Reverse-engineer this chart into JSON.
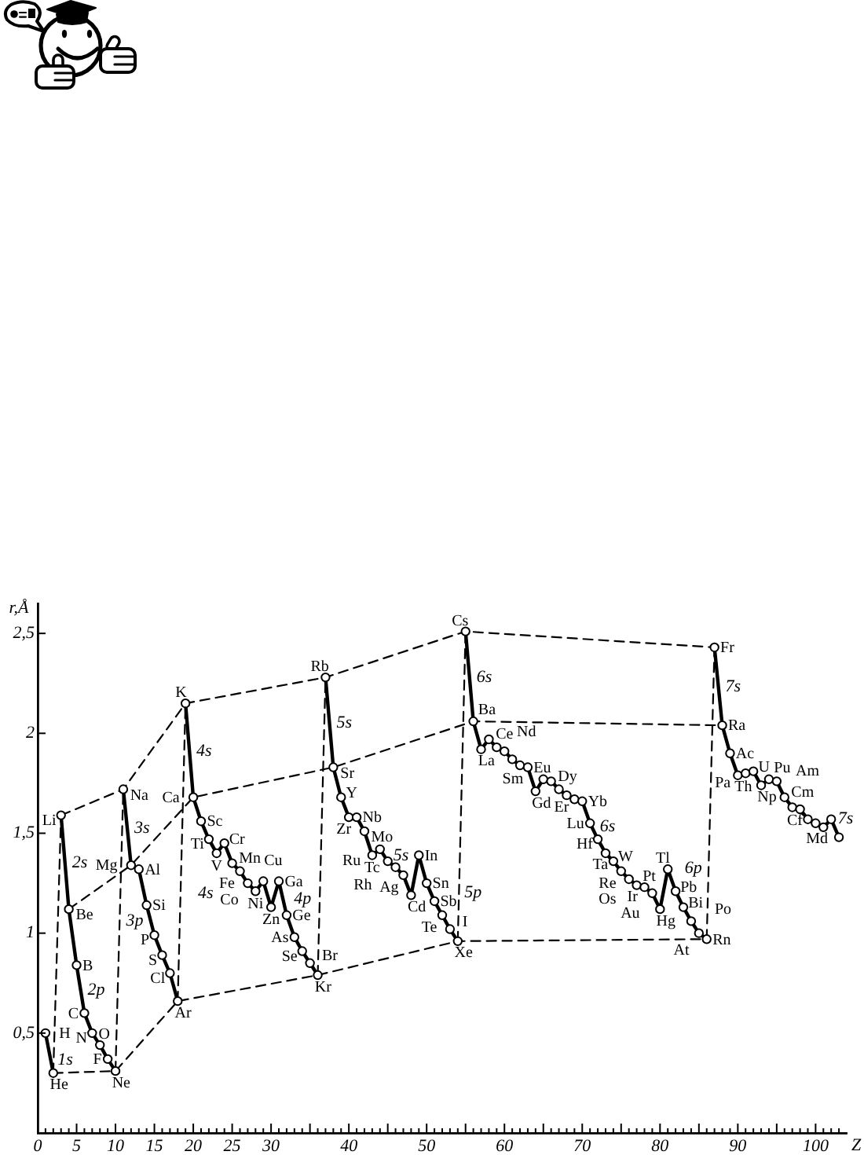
{
  "chart_data": {
    "type": "line",
    "xlabel": "Z",
    "ylabel": "r,Å",
    "marker": "circle",
    "line_style": "solid",
    "xlim": [
      0,
      104
    ],
    "ylim": [
      0,
      2.65
    ],
    "xticks": [
      0,
      {
        "value": 1,
        "label": null
      },
      {
        "value": 2,
        "label": null
      },
      {
        "value": 3,
        "label": null
      },
      {
        "value": 4,
        "label": null
      },
      5,
      {
        "value": 6,
        "label": null
      },
      {
        "value": 7,
        "label": null
      },
      {
        "value": 8,
        "label": null
      },
      {
        "value": 9,
        "label": null
      },
      10,
      {
        "value": 11,
        "label": null
      },
      {
        "value": 12,
        "label": null
      },
      {
        "value": 13,
        "label": null
      },
      {
        "value": 14,
        "label": null
      },
      15,
      {
        "value": 16,
        "label": null
      },
      {
        "value": 17,
        "label": null
      },
      {
        "value": 18,
        "label": null
      },
      {
        "value": 19,
        "label": null
      },
      20,
      {
        "value": 21,
        "label": null
      },
      {
        "value": 22,
        "label": null
      },
      {
        "value": 23,
        "label": null
      },
      {
        "value": 24,
        "label": null
      },
      25,
      {
        "value": 26,
        "label": null
      },
      {
        "value": 27,
        "label": null
      },
      {
        "value": 28,
        "label": null
      },
      {
        "value": 29,
        "label": null
      },
      30,
      {
        "value": 31,
        "label": null
      },
      {
        "value": 32,
        "label": null
      },
      {
        "value": 33,
        "label": null
      },
      {
        "value": 34,
        "label": null
      },
      {
        "value": 35,
        "label": null
      },
      {
        "value": 36,
        "label": null
      },
      {
        "value": 37,
        "label": null
      },
      {
        "value": 38,
        "label": null
      },
      {
        "value": 39,
        "label": null
      },
      40,
      {
        "value": 41,
        "label": null
      },
      {
        "value": 42,
        "label": null
      },
      {
        "value": 43,
        "label": null
      },
      {
        "value": 44,
        "label": null
      },
      {
        "value": 45,
        "label": null
      },
      {
        "value": 46,
        "label": null
      },
      {
        "value": 47,
        "label": null
      },
      {
        "value": 48,
        "label": null
      },
      {
        "value": 49,
        "label": null
      },
      50,
      {
        "value": 51,
        "label": null
      },
      {
        "value": 52,
        "label": null
      },
      {
        "value": 53,
        "label": null
      },
      {
        "value": 54,
        "label": null
      },
      {
        "value": 55,
        "label": null
      },
      {
        "value": 56,
        "label": null
      },
      {
        "value": 57,
        "label": null
      },
      {
        "value": 58,
        "label": null
      },
      {
        "value": 59,
        "label": null
      },
      60,
      {
        "value": 61,
        "label": null
      },
      {
        "value": 62,
        "label": null
      },
      {
        "value": 63,
        "label": null
      },
      {
        "value": 64,
        "label": null
      },
      {
        "value": 65,
        "label": null
      },
      {
        "value": 66,
        "label": null
      },
      {
        "value": 67,
        "label": null
      },
      {
        "value": 68,
        "label": null
      },
      {
        "value": 69,
        "label": null
      },
      70,
      {
        "value": 71,
        "label": null
      },
      {
        "value": 72,
        "label": null
      },
      {
        "value": 73,
        "label": null
      },
      {
        "value": 74,
        "label": null
      },
      {
        "value": 75,
        "label": null
      },
      {
        "value": 76,
        "label": null
      },
      {
        "value": 77,
        "label": null
      },
      {
        "value": 78,
        "label": null
      },
      {
        "value": 79,
        "label": null
      },
      80,
      {
        "value": 81,
        "label": null
      },
      {
        "value": 82,
        "label": null
      },
      {
        "value": 83,
        "label": null
      },
      {
        "value": 84,
        "label": null
      },
      {
        "value": 85,
        "label": null
      },
      {
        "value": 86,
        "label": null
      },
      {
        "value": 87,
        "label": null
      },
      {
        "value": 88,
        "label": null
      },
      {
        "value": 89,
        "label": null
      },
      90,
      {
        "value": 91,
        "label": null
      },
      {
        "value": 92,
        "label": null
      },
      {
        "value": 93,
        "label": null
      },
      {
        "value": 94,
        "label": null
      },
      {
        "value": 95,
        "label": null
      },
      {
        "value": 96,
        "label": null
      },
      {
        "value": 97,
        "label": null
      },
      {
        "value": 98,
        "label": null
      },
      {
        "value": 99,
        "label": null
      },
      100,
      {
        "value": 101,
        "label": null
      },
      {
        "value": 102,
        "label": null
      },
      {
        "value": 103,
        "label": null
      }
    ],
    "yticks": [
      {
        "value": 0.5,
        "label": "0,5"
      },
      1,
      {
        "value": 1.5,
        "label": "1,5"
      },
      2,
      {
        "value": 2.5,
        "label": "2,5"
      }
    ],
    "series": [
      {
        "color": "#000000",
        "x": [
          1,
          2
        ],
        "values": [
          0.5,
          0.3
        ]
      },
      {
        "color": "#000000",
        "x": [
          3,
          4,
          5,
          6,
          7,
          8,
          9,
          10
        ],
        "values": [
          1.59,
          1.12,
          0.84,
          0.6,
          0.5,
          0.44,
          0.37,
          0.31
        ]
      },
      {
        "color": "#000000",
        "x": [
          11,
          12,
          13,
          14,
          15,
          16,
          17,
          18
        ],
        "values": [
          1.72,
          1.34,
          1.32,
          1.14,
          0.99,
          0.89,
          0.8,
          0.66
        ]
      },
      {
        "color": "#000000",
        "x": [
          19,
          20,
          21,
          22,
          23,
          24,
          25,
          26,
          27,
          28,
          29,
          30,
          31,
          32,
          33,
          34,
          35,
          36
        ],
        "values": [
          2.15,
          1.68,
          1.56,
          1.47,
          1.4,
          1.45,
          1.35,
          1.31,
          1.25,
          1.21,
          1.26,
          1.13,
          1.26,
          1.09,
          0.98,
          0.91,
          0.85,
          0.79
        ]
      },
      {
        "color": "#000000",
        "x": [
          37,
          38,
          39,
          40,
          41,
          42,
          43,
          44,
          45,
          46,
          47,
          48,
          49,
          50,
          51,
          52,
          53,
          54
        ],
        "values": [
          2.28,
          1.83,
          1.68,
          1.58,
          1.58,
          1.51,
          1.39,
          1.42,
          1.36,
          1.33,
          1.29,
          1.19,
          1.39,
          1.25,
          1.16,
          1.09,
          1.02,
          0.96
        ]
      },
      {
        "color": "#000000",
        "x": [
          55,
          56,
          57,
          58,
          59,
          60,
          61,
          62,
          63,
          64,
          65,
          66,
          67,
          68,
          69,
          70,
          71,
          72,
          73,
          74,
          75,
          76,
          77,
          78,
          79,
          80,
          81,
          82,
          83,
          84,
          85,
          86
        ],
        "values": [
          2.51,
          2.06,
          1.92,
          1.97,
          1.93,
          1.91,
          1.87,
          1.84,
          1.83,
          1.71,
          1.77,
          1.76,
          1.72,
          1.69,
          1.67,
          1.66,
          1.55,
          1.47,
          1.4,
          1.36,
          1.31,
          1.27,
          1.24,
          1.23,
          1.2,
          1.12,
          1.32,
          1.21,
          1.13,
          1.06,
          1.0,
          0.97
        ]
      },
      {
        "color": "#000000",
        "x": [
          87,
          88,
          89,
          90,
          91,
          92,
          93,
          94,
          95,
          96,
          97,
          98,
          99,
          100,
          101,
          102,
          103
        ],
        "values": [
          2.43,
          2.04,
          1.9,
          1.79,
          1.8,
          1.81,
          1.74,
          1.77,
          1.76,
          1.68,
          1.63,
          1.62,
          1.57,
          1.55,
          1.53,
          1.57,
          1.48
        ]
      },
      {
        "color": "#000000",
        "line_style": "dashed",
        "marker": "none",
        "x": [
          3,
          11,
          19,
          37,
          55,
          87
        ],
        "values": [
          1.59,
          1.72,
          2.15,
          2.28,
          2.51,
          2.43
        ]
      },
      {
        "color": "#000000",
        "line_style": "dashed",
        "marker": "none",
        "x": [
          4,
          12,
          20,
          38,
          56,
          88
        ],
        "values": [
          1.12,
          1.34,
          1.68,
          1.83,
          2.06,
          2.04
        ]
      },
      {
        "color": "#000000",
        "line_style": "dashed",
        "marker": "none",
        "x": [
          2,
          10,
          18,
          36,
          54,
          86
        ],
        "values": [
          0.3,
          0.31,
          0.66,
          0.79,
          0.96,
          0.97
        ]
      },
      {
        "color": "#000000",
        "line_style": "dashed",
        "marker": "none",
        "x": [
          2,
          3
        ],
        "values": [
          0.3,
          1.59
        ]
      },
      {
        "color": "#000000",
        "line_style": "dashed",
        "marker": "none",
        "x": [
          10,
          11
        ],
        "values": [
          0.31,
          1.72
        ]
      },
      {
        "color": "#000000",
        "line_style": "dashed",
        "marker": "none",
        "x": [
          18,
          19
        ],
        "values": [
          0.66,
          2.15
        ]
      },
      {
        "color": "#000000",
        "line_style": "dashed",
        "marker": "none",
        "x": [
          36,
          37
        ],
        "values": [
          0.79,
          2.28
        ]
      },
      {
        "color": "#000000",
        "line_style": "dashed",
        "marker": "none",
        "x": [
          54,
          55
        ],
        "values": [
          0.96,
          2.51
        ]
      },
      {
        "color": "#000000",
        "line_style": "dashed",
        "marker": "none",
        "x": [
          86,
          87
        ],
        "values": [
          0.97,
          2.43
        ]
      }
    ],
    "annotations": [
      {
        "text": "1s",
        "x": 1.5,
        "y": 0.4
      },
      {
        "text": "2s",
        "x": 3.5,
        "y": 1.355
      },
      {
        "text": "2p",
        "x": 5.5,
        "y": 0.72
      },
      {
        "text": "3s",
        "x": 11.5,
        "y": 1.53
      },
      {
        "text": "3p",
        "x": 14.5,
        "y": 1.065
      },
      {
        "text": "4s",
        "x": 19.5,
        "y": 1.915
      },
      {
        "text": "4s",
        "x": 26.5,
        "y": 1.28
      },
      {
        "text": "4p",
        "x": 32.5,
        "y": 1.035
      },
      {
        "text": "5s",
        "x": 37.5,
        "y": 2.055
      },
      {
        "text": "5s",
        "x": 44.5,
        "y": 1.39
      },
      {
        "text": "5p",
        "x": 50.5,
        "y": 1.205
      },
      {
        "text": "6s",
        "x": 55.5,
        "y": 2.285
      },
      {
        "text": "6s",
        "x": 71.5,
        "y": 1.51
      },
      {
        "text": "6p",
        "x": 82.5,
        "y": 1.17
      },
      {
        "text": "7s",
        "x": 87.5,
        "y": 2.235
      },
      {
        "text": "7s",
        "x": 102.5,
        "y": 1.525
      },
      {
        "text": "H",
        "x": 1,
        "y": 0.5
      },
      {
        "text": "He",
        "x": 2,
        "y": 0.3
      },
      {
        "text": "Li",
        "x": 3,
        "y": 1.59
      },
      {
        "text": "Be",
        "x": 4,
        "y": 1.12
      },
      {
        "text": "B",
        "x": 5,
        "y": 0.84
      },
      {
        "text": "C",
        "x": 6,
        "y": 0.6
      },
      {
        "text": "N",
        "x": 7,
        "y": 0.5
      },
      {
        "text": "O",
        "x": 8,
        "y": 0.44
      },
      {
        "text": "F",
        "x": 9,
        "y": 0.37
      },
      {
        "text": "Ne",
        "x": 10,
        "y": 0.31
      },
      {
        "text": "Na",
        "x": 11,
        "y": 1.72
      },
      {
        "text": "Mg",
        "x": 12,
        "y": 1.34
      },
      {
        "text": "Al",
        "x": 13,
        "y": 1.32
      },
      {
        "text": "Si",
        "x": 14,
        "y": 1.14
      },
      {
        "text": "P",
        "x": 15,
        "y": 0.99
      },
      {
        "text": "S",
        "x": 16,
        "y": 0.89
      },
      {
        "text": "Cl",
        "x": 17,
        "y": 0.8
      },
      {
        "text": "Ar",
        "x": 18,
        "y": 0.66
      },
      {
        "text": "K",
        "x": 19,
        "y": 2.15
      },
      {
        "text": "Ca",
        "x": 20,
        "y": 1.68
      },
      {
        "text": "Sc",
        "x": 21,
        "y": 1.56
      },
      {
        "text": "Ti",
        "x": 22,
        "y": 1.47
      },
      {
        "text": "V",
        "x": 23,
        "y": 1.4
      },
      {
        "text": "Cr",
        "x": 24,
        "y": 1.45
      },
      {
        "text": "Mn",
        "x": 25,
        "y": 1.35
      },
      {
        "text": "Fe",
        "x": 26,
        "y": 1.31
      },
      {
        "text": "Co",
        "x": 27,
        "y": 1.25
      },
      {
        "text": "Ni",
        "x": 28,
        "y": 1.21
      },
      {
        "text": "Cu",
        "x": 29,
        "y": 1.26
      },
      {
        "text": "Zn",
        "x": 30,
        "y": 1.13
      },
      {
        "text": "Ga",
        "x": 31,
        "y": 1.26
      },
      {
        "text": "Ge",
        "x": 32,
        "y": 1.09
      },
      {
        "text": "As",
        "x": 33,
        "y": 0.98
      },
      {
        "text": "Se",
        "x": 34,
        "y": 0.91
      },
      {
        "text": "Br",
        "x": 35,
        "y": 0.85
      },
      {
        "text": "Kr",
        "x": 36,
        "y": 0.79
      },
      {
        "text": "Rb",
        "x": 37,
        "y": 2.28
      },
      {
        "text": "Sr",
        "x": 38,
        "y": 1.83
      },
      {
        "text": "Y",
        "x": 39,
        "y": 1.68
      },
      {
        "text": "Zr",
        "x": 40,
        "y": 1.58
      },
      {
        "text": "Nb",
        "x": 41,
        "y": 1.58
      },
      {
        "text": "Mo",
        "x": 42,
        "y": 1.51
      },
      {
        "text": "Tc",
        "x": 43,
        "y": 1.39
      },
      {
        "text": "Ru",
        "x": 44,
        "y": 1.42
      },
      {
        "text": "Rh",
        "x": 45,
        "y": 1.36
      },
      {
        "text": "Ag",
        "x": 47,
        "y": 1.29
      },
      {
        "text": "Cd",
        "x": 48,
        "y": 1.19
      },
      {
        "text": "In",
        "x": 49,
        "y": 1.39
      },
      {
        "text": "Sn",
        "x": 50,
        "y": 1.25
      },
      {
        "text": "Sb",
        "x": 51,
        "y": 1.16
      },
      {
        "text": "Te",
        "x": 52,
        "y": 1.09
      },
      {
        "text": "I",
        "x": 53,
        "y": 1.02
      },
      {
        "text": "Xe",
        "x": 54,
        "y": 0.96
      },
      {
        "text": "Cs",
        "x": 55,
        "y": 2.51
      },
      {
        "text": "Ba",
        "x": 56,
        "y": 2.06
      },
      {
        "text": "La",
        "x": 57,
        "y": 1.92
      },
      {
        "text": "Ce",
        "x": 58,
        "y": 1.97
      },
      {
        "text": "Nd",
        "x": 60,
        "y": 1.91
      },
      {
        "text": "Sm",
        "x": 62,
        "y": 1.84
      },
      {
        "text": "Eu",
        "x": 63,
        "y": 1.83
      },
      {
        "text": "Gd",
        "x": 64,
        "y": 1.71
      },
      {
        "text": "Dy",
        "x": 66,
        "y": 1.76
      },
      {
        "text": "Er",
        "x": 68,
        "y": 1.69
      },
      {
        "text": "Yb",
        "x": 70,
        "y": 1.66
      },
      {
        "text": "Lu",
        "x": 71,
        "y": 1.55
      },
      {
        "text": "Hf",
        "x": 72,
        "y": 1.47
      },
      {
        "text": "Ta",
        "x": 73,
        "y": 1.4
      },
      {
        "text": "W",
        "x": 74,
        "y": 1.36
      },
      {
        "text": "Re",
        "x": 75,
        "y": 1.31
      },
      {
        "text": "Os",
        "x": 76,
        "y": 1.27
      },
      {
        "text": "Ir",
        "x": 77,
        "y": 1.24
      },
      {
        "text": "Pt",
        "x": 78,
        "y": 1.23
      },
      {
        "text": "Au",
        "x": 79,
        "y": 1.2
      },
      {
        "text": "Hg",
        "x": 80,
        "y": 1.12
      },
      {
        "text": "Tl",
        "x": 81,
        "y": 1.32
      },
      {
        "text": "Pb",
        "x": 82,
        "y": 1.21
      },
      {
        "text": "Bi",
        "x": 83,
        "y": 1.13
      },
      {
        "text": "Po",
        "x": 84,
        "y": 1.06
      },
      {
        "text": "At",
        "x": 85,
        "y": 1.0
      },
      {
        "text": "Rn",
        "x": 86,
        "y": 0.97
      },
      {
        "text": "Fr",
        "x": 87,
        "y": 2.43
      },
      {
        "text": "Ra",
        "x": 88,
        "y": 2.04
      },
      {
        "text": "Ac",
        "x": 89,
        "y": 1.9
      },
      {
        "text": "Th",
        "x": 90,
        "y": 1.79
      },
      {
        "text": "Pa",
        "x": 91,
        "y": 1.8
      },
      {
        "text": "U",
        "x": 92,
        "y": 1.81
      },
      {
        "text": "Np",
        "x": 93,
        "y": 1.74
      },
      {
        "text": "Pu",
        "x": 94,
        "y": 1.77
      },
      {
        "text": "Am",
        "x": 95,
        "y": 1.76
      },
      {
        "text": "Cm",
        "x": 96,
        "y": 1.68
      },
      {
        "text": "Cf",
        "x": 98,
        "y": 1.62
      },
      {
        "text": "Md",
        "x": 101,
        "y": 1.53
      }
    ]
  }
}
